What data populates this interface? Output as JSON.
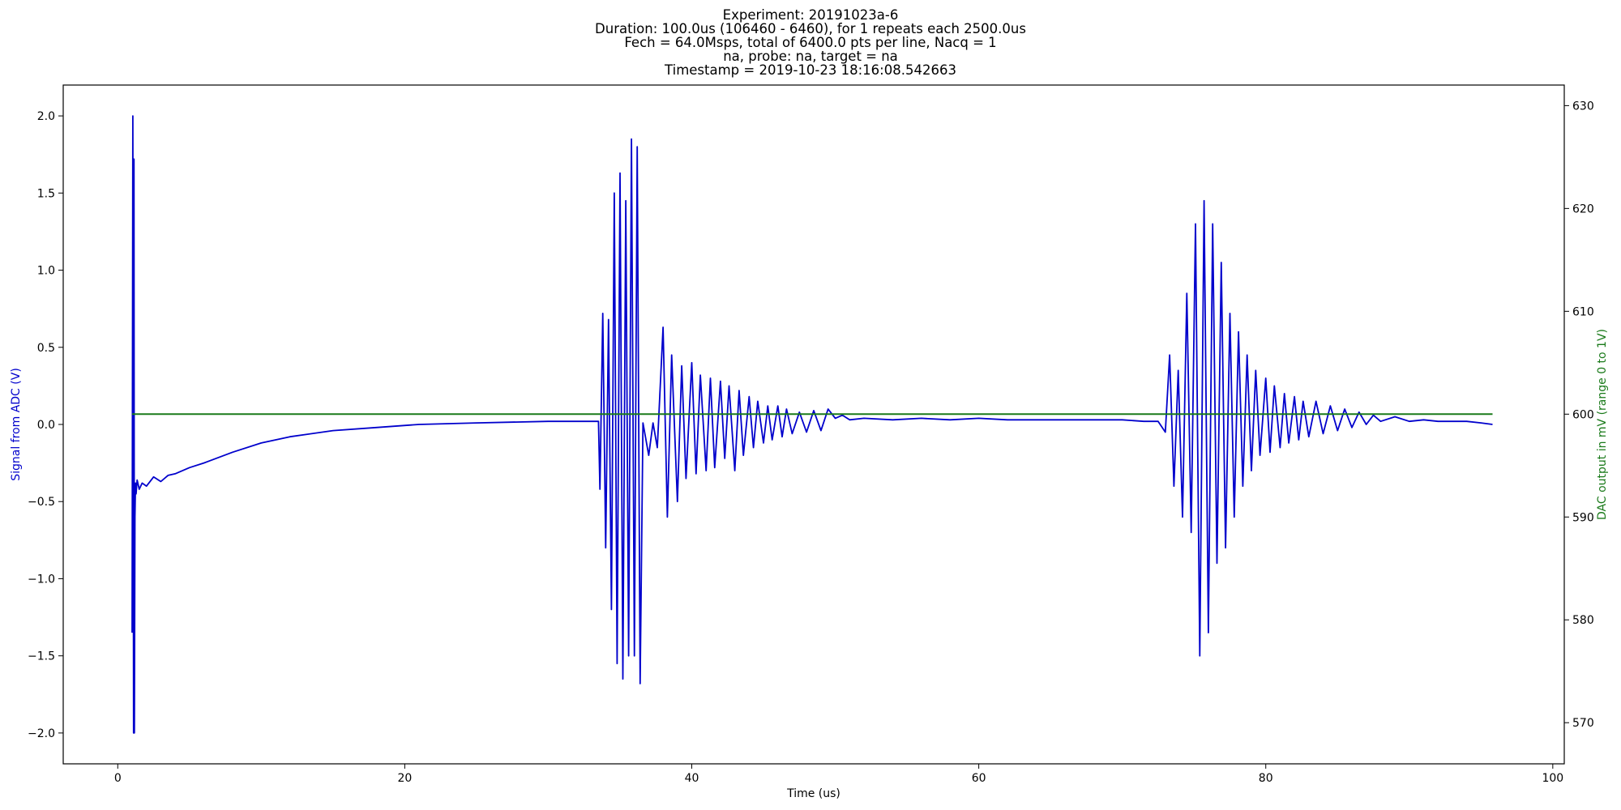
{
  "chart_data": {
    "type": "line",
    "title_lines": [
      "Experiment: 20191023a-6",
      "Duration: 100.0us (106460 - 6460), for 1 repeats each 2500.0us",
      "Fech = 64.0Msps, total of 6400.0 pts per line, Nacq = 1",
      "na, probe: na, target = na",
      "Timestamp = 2019-10-23 18:16:08.542663"
    ],
    "xlabel": "Time (us)",
    "ylabel_left": "Signal from ADC (V)",
    "ylabel_right": "DAC output in mV (range 0 to 1V)",
    "xlim": [
      -3.8,
      100.8
    ],
    "ylim_left": [
      -2.2,
      2.2
    ],
    "ylim_right": [
      566,
      632
    ],
    "x_ticks": [
      0,
      20,
      40,
      60,
      80,
      100
    ],
    "x_tick_labels": [
      "0",
      "20",
      "40",
      "60",
      "80",
      "100"
    ],
    "y_left_ticks": [
      -2.0,
      -1.5,
      -1.0,
      -0.5,
      0.0,
      0.5,
      1.0,
      1.5,
      2.0
    ],
    "y_left_tick_labels": [
      "−2.0",
      "−1.5",
      "−1.0",
      "−0.5",
      "0.0",
      "0.5",
      "1.0",
      "1.5",
      "2.0"
    ],
    "y_right_ticks": [
      570,
      580,
      590,
      600,
      610,
      620,
      630
    ],
    "y_right_tick_labels": [
      "570",
      "580",
      "590",
      "600",
      "610",
      "620",
      "630"
    ],
    "grid": false,
    "legend": "none",
    "colors": {
      "signal": "#0000cc",
      "dac": "#1a7a1a",
      "ylabel_left": "#0000cc",
      "ylabel_right": "#1a7a1a"
    },
    "series": [
      {
        "axis": "left",
        "color": "#0000cc",
        "x": [
          1.0,
          1.05,
          1.1,
          1.13,
          1.16,
          1.2,
          1.24,
          1.28,
          1.35,
          1.5,
          1.7,
          2.0,
          2.5,
          3.0,
          3.5,
          4.0,
          5.0,
          6.0,
          8.0,
          10.0,
          12.0,
          15.0,
          18.0,
          21.0,
          25.0,
          30.0,
          33.5,
          33.6,
          33.8,
          34.0,
          34.2,
          34.4,
          34.6,
          34.8,
          35.0,
          35.2,
          35.4,
          35.6,
          35.8,
          36.0,
          36.2,
          36.4,
          36.6,
          37.0,
          37.3,
          37.6,
          38.0,
          38.3,
          38.6,
          39.0,
          39.3,
          39.6,
          40.0,
          40.3,
          40.6,
          41.0,
          41.3,
          41.6,
          42.0,
          42.3,
          42.6,
          43.0,
          43.3,
          43.6,
          44.0,
          44.3,
          44.6,
          45.0,
          45.3,
          45.6,
          46.0,
          46.3,
          46.6,
          47.0,
          47.5,
          48.0,
          48.5,
          49.0,
          49.5,
          50.0,
          50.5,
          51.0,
          52.0,
          54.0,
          56.0,
          58.0,
          60.0,
          62.0,
          64.0,
          66.0,
          68.0,
          70.0,
          71.5,
          72.5,
          73.0,
          73.3,
          73.6,
          73.9,
          74.2,
          74.5,
          74.8,
          75.1,
          75.4,
          75.7,
          76.0,
          76.3,
          76.6,
          76.9,
          77.2,
          77.5,
          77.8,
          78.1,
          78.4,
          78.7,
          79.0,
          79.3,
          79.6,
          80.0,
          80.3,
          80.6,
          81.0,
          81.3,
          81.6,
          82.0,
          82.3,
          82.6,
          83.0,
          83.5,
          84.0,
          84.5,
          85.0,
          85.5,
          86.0,
          86.5,
          87.0,
          87.5,
          88.0,
          89.0,
          90.0,
          91.0,
          92.0,
          93.0,
          94.0,
          95.0,
          95.8
        ],
        "y": [
          -1.35,
          2.0,
          -2.0,
          1.72,
          -2.0,
          -0.6,
          -0.38,
          -0.45,
          -0.36,
          -0.42,
          -0.38,
          -0.4,
          -0.34,
          -0.37,
          -0.33,
          -0.32,
          -0.28,
          -0.25,
          -0.18,
          -0.12,
          -0.08,
          -0.04,
          -0.02,
          0.0,
          0.01,
          0.02,
          0.02,
          -0.42,
          0.72,
          -0.8,
          0.68,
          -1.2,
          1.5,
          -1.55,
          1.63,
          -1.65,
          1.45,
          -1.5,
          1.85,
          -1.5,
          1.8,
          -1.68,
          0.01,
          -0.2,
          0.01,
          -0.15,
          0.63,
          -0.6,
          0.45,
          -0.5,
          0.38,
          -0.35,
          0.4,
          -0.32,
          0.32,
          -0.3,
          0.3,
          -0.28,
          0.28,
          -0.22,
          0.25,
          -0.3,
          0.22,
          -0.2,
          0.18,
          -0.15,
          0.15,
          -0.12,
          0.12,
          -0.1,
          0.12,
          -0.08,
          0.1,
          -0.06,
          0.08,
          -0.05,
          0.09,
          -0.04,
          0.1,
          0.04,
          0.06,
          0.03,
          0.04,
          0.03,
          0.04,
          0.03,
          0.04,
          0.03,
          0.03,
          0.03,
          0.03,
          0.03,
          0.02,
          0.02,
          -0.05,
          0.45,
          -0.4,
          0.35,
          -0.6,
          0.85,
          -0.7,
          1.3,
          -1.5,
          1.45,
          -1.35,
          1.3,
          -0.9,
          1.05,
          -0.8,
          0.72,
          -0.6,
          0.6,
          -0.4,
          0.45,
          -0.3,
          0.35,
          -0.2,
          0.3,
          -0.18,
          0.25,
          -0.15,
          0.2,
          -0.12,
          0.18,
          -0.1,
          0.15,
          -0.08,
          0.15,
          -0.06,
          0.12,
          -0.04,
          0.1,
          -0.02,
          0.08,
          0.0,
          0.06,
          0.02,
          0.05,
          0.02,
          0.03,
          0.02,
          0.02,
          0.02,
          0.01,
          0.0
        ]
      },
      {
        "axis": "right",
        "color": "#1a7a1a",
        "x": [
          1.0,
          95.8
        ],
        "y": [
          600,
          600
        ]
      }
    ]
  }
}
